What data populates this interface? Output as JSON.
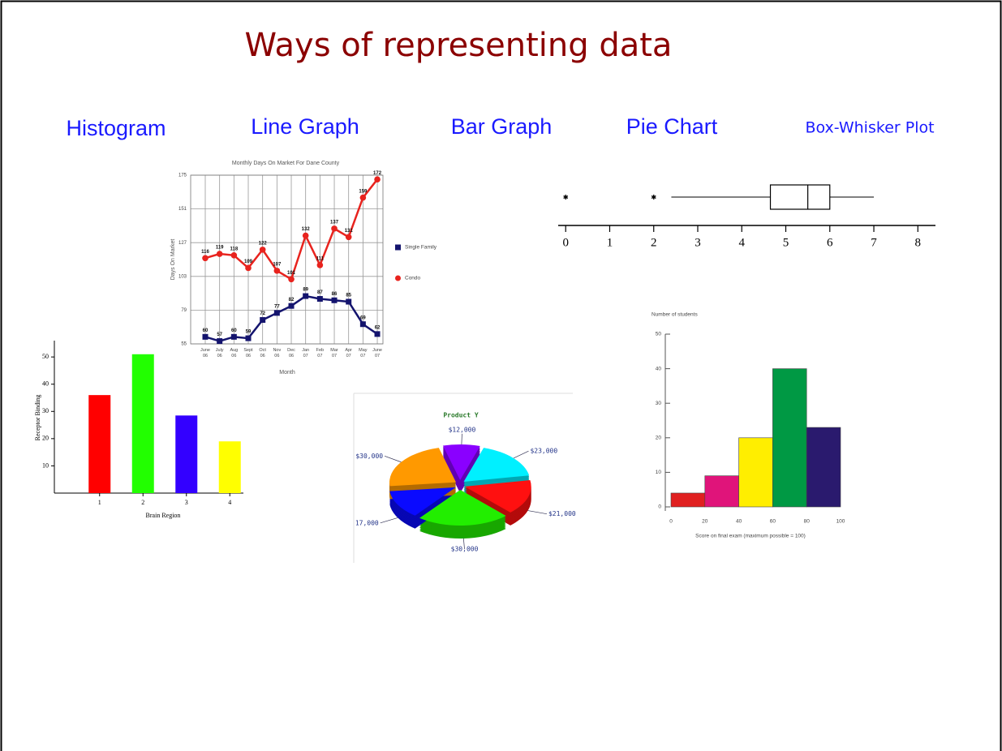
{
  "title": "Ways of representing data",
  "headings": [
    "Histogram",
    "Line Graph",
    "Bar Graph",
    "Pie Chart",
    "Box-Whisker Plot"
  ],
  "chart_data": [
    {
      "type": "line",
      "title": "Monthly Days On Market For Dane County",
      "x_label": "Month",
      "y_label": "Days On Market",
      "categories": [
        "June 06",
        "July 06",
        "Aug 06",
        "Sept 06",
        "Oct 06",
        "Nov 06",
        "Dec 06",
        "Jan 07",
        "Feb 07",
        "Mar 07",
        "Apr 07",
        "May 07",
        "June 07"
      ],
      "series": [
        {
          "name": "Single Family",
          "color": "#14146e",
          "values": [
            60,
            57,
            60,
            59,
            72,
            77,
            82,
            89,
            87,
            86,
            85,
            69,
            62
          ]
        },
        {
          "name": "Condo",
          "color": "#e8231e",
          "values": [
            116,
            119,
            118,
            109,
            122,
            107,
            101,
            132,
            111,
            137,
            131,
            159,
            172
          ]
        }
      ],
      "ylim": [
        55,
        175
      ],
      "yticks": [
        55,
        79,
        103,
        127,
        151,
        175
      ],
      "grid": true
    },
    {
      "type": "box",
      "xlim": [
        -0.17,
        8.4
      ],
      "xticks": [
        0,
        1,
        2,
        3,
        4,
        5,
        6,
        7,
        8
      ],
      "whisker_low": 2.4,
      "q1": 4.65,
      "median": 5.5,
      "q3": 6,
      "whisker_high": 7,
      "outliers": [
        0,
        2
      ]
    },
    {
      "type": "bar",
      "x_label": "Brain Region",
      "y_label": "Receptor Binding",
      "categories": [
        "1",
        "2",
        "3",
        "4"
      ],
      "values": [
        36,
        51,
        28.5,
        19
      ],
      "colors": [
        "#ff0000",
        "#22ff00",
        "#3300ff",
        "#ffff00"
      ],
      "ylim": [
        0,
        56
      ],
      "yticks": [
        10,
        20,
        30,
        40,
        50
      ]
    },
    {
      "type": "pie",
      "title": "Product Y",
      "values": [
        12000,
        23000,
        21000,
        30000,
        17000,
        30000
      ],
      "value_labels": [
        "$12,000",
        "$23,000",
        "$21,000",
        "$30,000",
        "17,000",
        "$30,000"
      ],
      "colors": [
        "#8a00ff",
        "#00f0ff",
        "#ff1010",
        "#22ee00",
        "#0a0aff",
        "#ff9900"
      ]
    },
    {
      "type": "histogram",
      "y_label": "Number of students",
      "x_label": "Score on final exam (maximum possible = 100)",
      "bins": [
        0,
        20,
        40,
        60,
        80,
        100
      ],
      "counts": [
        4,
        9,
        20,
        40,
        23
      ],
      "colors": [
        "#e02020",
        "#e0147a",
        "#ffee00",
        "#009944",
        "#2a1a6e"
      ],
      "xlim": [
        0,
        100
      ],
      "xticks": [
        0,
        20,
        40,
        60,
        80,
        100
      ],
      "ylim": [
        0,
        50
      ],
      "yticks": [
        0,
        10,
        20,
        30,
        40,
        50
      ]
    }
  ]
}
